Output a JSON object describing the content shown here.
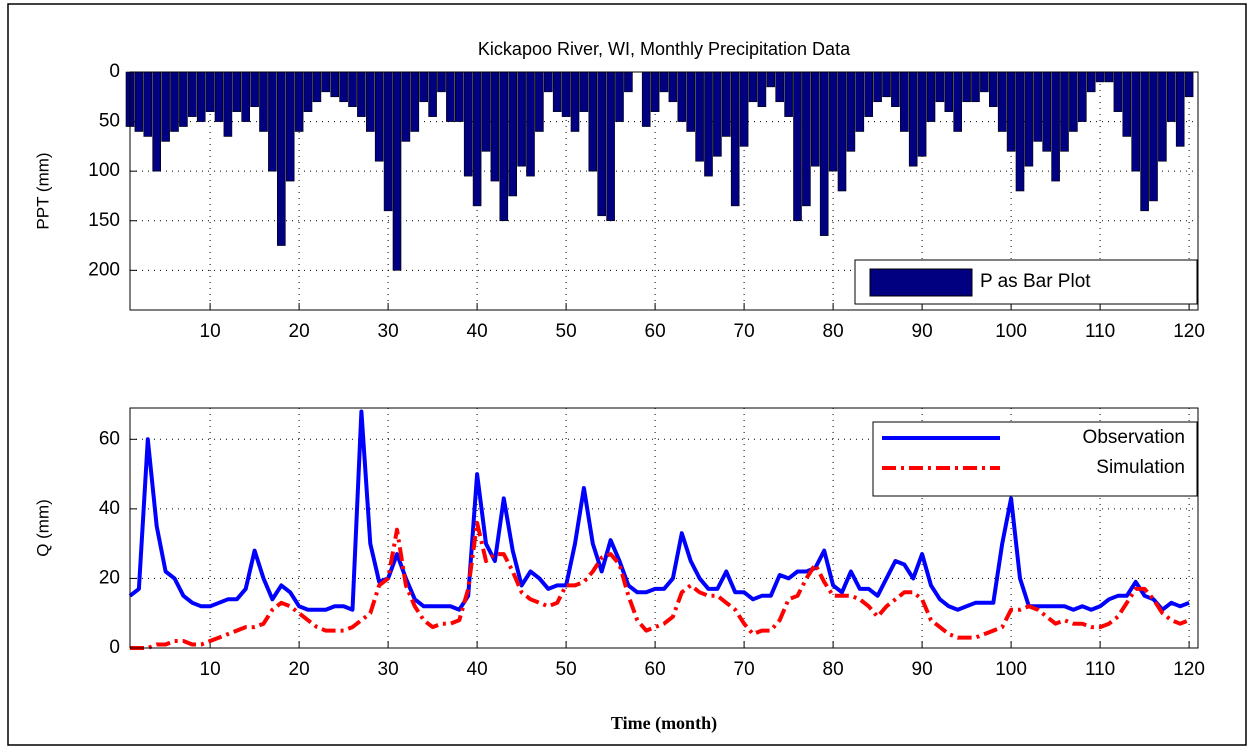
{
  "chart_data": [
    {
      "type": "bar",
      "title": "Kickapoo River, WI, Monthly Precipitation Data",
      "ylabel": "PPT (mm)",
      "x": [
        1,
        2,
        3,
        4,
        5,
        6,
        7,
        8,
        9,
        10,
        11,
        12,
        13,
        14,
        15,
        16,
        17,
        18,
        19,
        20,
        21,
        22,
        23,
        24,
        25,
        26,
        27,
        28,
        29,
        30,
        31,
        32,
        33,
        34,
        35,
        36,
        37,
        38,
        39,
        40,
        41,
        42,
        43,
        44,
        45,
        46,
        47,
        48,
        49,
        50,
        51,
        52,
        53,
        54,
        55,
        56,
        57,
        58,
        59,
        60,
        61,
        62,
        63,
        64,
        65,
        66,
        67,
        68,
        69,
        70,
        71,
        72,
        73,
        74,
        75,
        76,
        77,
        78,
        79,
        80,
        81,
        82,
        83,
        84,
        85,
        86,
        87,
        88,
        89,
        90,
        91,
        92,
        93,
        94,
        95,
        96,
        97,
        98,
        99,
        100,
        101,
        102,
        103,
        104,
        105,
        106,
        107,
        108,
        109,
        110,
        111,
        112,
        113,
        114,
        115,
        116,
        117,
        118,
        119,
        120
      ],
      "series": [
        {
          "name": "P as Bar Plot",
          "color": "#000080",
          "values": [
            55,
            60,
            65,
            100,
            70,
            60,
            55,
            45,
            50,
            40,
            50,
            65,
            40,
            50,
            35,
            60,
            100,
            175,
            110,
            60,
            40,
            30,
            20,
            25,
            30,
            35,
            45,
            60,
            90,
            140,
            200,
            70,
            60,
            30,
            45,
            20,
            50,
            50,
            105,
            135,
            80,
            110,
            150,
            125,
            95,
            105,
            60,
            20,
            40,
            45,
            60,
            40,
            100,
            145,
            150,
            50,
            20,
            0,
            55,
            40,
            20,
            30,
            50,
            60,
            90,
            105,
            85,
            65,
            135,
            75,
            30,
            35,
            15,
            30,
            45,
            150,
            135,
            95,
            165,
            100,
            120,
            80,
            60,
            45,
            30,
            25,
            35,
            60,
            95,
            85,
            50,
            30,
            40,
            60,
            30,
            30,
            20,
            35,
            60,
            80,
            120,
            95,
            70,
            80,
            110,
            80,
            60,
            50,
            20,
            10,
            10,
            40,
            65,
            100,
            140,
            130,
            90,
            50,
            75,
            25
          ]
        }
      ],
      "xlim": [
        1,
        121
      ],
      "xticks": [
        10,
        20,
        30,
        40,
        50,
        60,
        70,
        80,
        90,
        100,
        110,
        120
      ],
      "ylim": [
        0,
        240
      ],
      "yticks": [
        0,
        50,
        100,
        150,
        200
      ],
      "y_reversed": true,
      "grid": true,
      "legend": "lower right"
    },
    {
      "type": "line",
      "ylabel": "Q (mm)",
      "xlabel": "Time (month)",
      "x": [
        1,
        2,
        3,
        4,
        5,
        6,
        7,
        8,
        9,
        10,
        11,
        12,
        13,
        14,
        15,
        16,
        17,
        18,
        19,
        20,
        21,
        22,
        23,
        24,
        25,
        26,
        27,
        28,
        29,
        30,
        31,
        32,
        33,
        34,
        35,
        36,
        37,
        38,
        39,
        40,
        41,
        42,
        43,
        44,
        45,
        46,
        47,
        48,
        49,
        50,
        51,
        52,
        53,
        54,
        55,
        56,
        57,
        58,
        59,
        60,
        61,
        62,
        63,
        64,
        65,
        66,
        67,
        68,
        69,
        70,
        71,
        72,
        73,
        74,
        75,
        76,
        77,
        78,
        79,
        80,
        81,
        82,
        83,
        84,
        85,
        86,
        87,
        88,
        89,
        90,
        91,
        92,
        93,
        94,
        95,
        96,
        97,
        98,
        99,
        100,
        101,
        102,
        103,
        104,
        105,
        106,
        107,
        108,
        109,
        110,
        111,
        112,
        113,
        114,
        115,
        116,
        117,
        118,
        119,
        120
      ],
      "series": [
        {
          "name": "Observation",
          "color": "#0000ff",
          "style": "solid",
          "values": [
            15,
            17,
            60,
            35,
            22,
            20,
            15,
            13,
            12,
            12,
            13,
            14,
            14,
            17,
            28,
            20,
            14,
            18,
            16,
            12,
            11,
            11,
            11,
            12,
            12,
            11,
            68,
            30,
            19,
            20,
            27,
            20,
            14,
            12,
            12,
            12,
            12,
            11,
            15,
            50,
            30,
            25,
            43,
            28,
            18,
            22,
            20,
            17,
            18,
            18,
            30,
            46,
            30,
            22,
            31,
            25,
            18,
            16,
            16,
            17,
            17,
            20,
            33,
            25,
            20,
            17,
            17,
            22,
            16,
            16,
            14,
            15,
            15,
            21,
            20,
            22,
            22,
            23,
            28,
            18,
            16,
            22,
            17,
            17,
            15,
            20,
            25,
            24,
            20,
            27,
            18,
            14,
            12,
            11,
            12,
            13,
            13,
            13,
            30,
            43,
            20,
            12,
            12,
            12,
            12,
            12,
            11,
            12,
            11,
            12,
            14,
            15,
            15,
            19,
            15,
            14,
            11,
            13,
            12,
            13
          ]
        },
        {
          "name": "Simulation",
          "color": "#ff0000",
          "style": "dashdot",
          "values": [
            0,
            0,
            0,
            1,
            1,
            2,
            2,
            1,
            1,
            2,
            3,
            4,
            5,
            6,
            6,
            7,
            11,
            13,
            12,
            10,
            8,
            6,
            5,
            5,
            5,
            6,
            8,
            10,
            18,
            20,
            34,
            18,
            12,
            8,
            6,
            7,
            7,
            8,
            17,
            36,
            25,
            27,
            27,
            22,
            16,
            14,
            13,
            12,
            13,
            18,
            18,
            19,
            22,
            26,
            27,
            24,
            15,
            8,
            5,
            6,
            7,
            9,
            16,
            18,
            16,
            15,
            15,
            13,
            11,
            7,
            4,
            5,
            5,
            8,
            14,
            15,
            20,
            24,
            19,
            15,
            15,
            15,
            14,
            12,
            9,
            12,
            14,
            16,
            16,
            14,
            8,
            6,
            4,
            3,
            3,
            3,
            4,
            5,
            6,
            11,
            11,
            12,
            11,
            9,
            7,
            8,
            7,
            7,
            6,
            6,
            7,
            9,
            13,
            17,
            17,
            14,
            10,
            8,
            7,
            8
          ]
        }
      ],
      "xlim": [
        1,
        121
      ],
      "xticks": [
        10,
        20,
        30,
        40,
        50,
        60,
        70,
        80,
        90,
        100,
        110,
        120
      ],
      "ylim": [
        0,
        69
      ],
      "yticks": [
        0,
        20,
        40,
        60
      ],
      "grid": true,
      "legend": "upper right"
    }
  ]
}
